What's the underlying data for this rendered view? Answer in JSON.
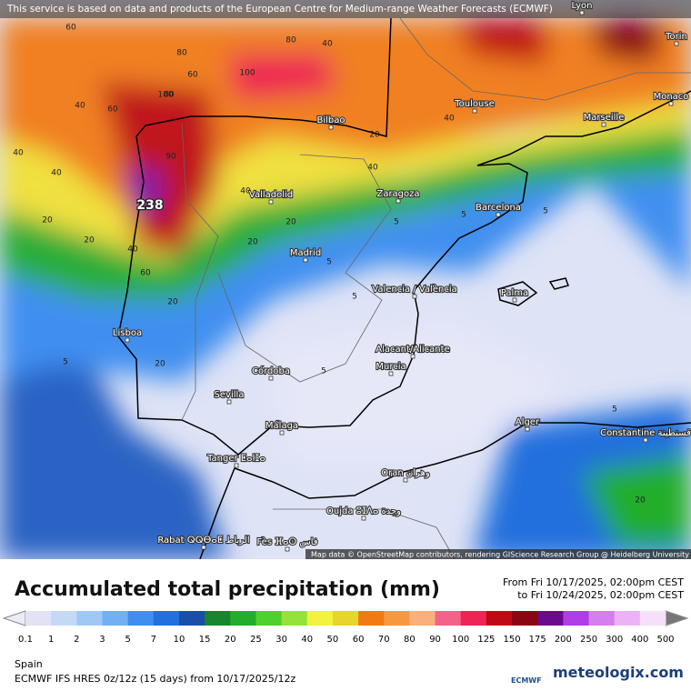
{
  "banner": "This service is based on data and products of the European Centre for Medium-range Weather Forecasts (ECMWF)",
  "attribution": "Map data © OpenStreetMap contributors, rendering GIScience Research Group @ Heidelberg University",
  "max_label": "238",
  "cities": [
    "Lyon",
    "Torin",
    "Monaco",
    "Toulouse",
    "Marseille",
    "Bilbao",
    "Valladolid",
    "Zaragoza",
    "Barcelona",
    "Madrid",
    "Valencia / València",
    "Palma",
    "Lisboa",
    "Córdoba",
    "Alacant/Alicante",
    "Murcia",
    "Sevilla",
    "Málaga",
    "Alger",
    "Constantine قسنطينة",
    "Tanger ⵟⴰⵏⵊⴰ",
    "Oran وهران",
    "Oujda ⵓⵊⴷⴰ وجدة",
    "Rabat ⵕⵕⴱⴰⵟ الرباط",
    "Fès ⴼⴰⵙ فاس"
  ],
  "contour_labels": [
    "60",
    "80",
    "100",
    "80",
    "60",
    "40",
    "60",
    "80",
    "40",
    "40",
    "100",
    "90",
    "40",
    "20",
    "40",
    "20",
    "40",
    "60",
    "40",
    "20",
    "20",
    "40",
    "20",
    "5",
    "5",
    "5",
    "5",
    "5",
    "5",
    "20",
    "5",
    "20",
    "5",
    "20"
  ],
  "legend": {
    "title": "Accumulated total precipitation (mm)",
    "from": "From Fri 10/17/2025, 02:00pm CEST",
    "to": "to Fri 10/24/2025, 02:00pm CEST",
    "ticks": [
      "0.1",
      "1",
      "2",
      "3",
      "5",
      "7",
      "10",
      "15",
      "20",
      "25",
      "30",
      "40",
      "50",
      "60",
      "70",
      "80",
      "90",
      "100",
      "125",
      "150",
      "175",
      "200",
      "250",
      "300",
      "400",
      "500"
    ],
    "colors": [
      "#e2e2f4",
      "#c4d9f5",
      "#9fc8f7",
      "#72b0f3",
      "#3f8ff0",
      "#2170dd",
      "#1a4ea8",
      "#17862c",
      "#22ad2b",
      "#4fd02e",
      "#94e23a",
      "#f2f241",
      "#e6d52a",
      "#f07a13",
      "#f69742",
      "#f9b07a",
      "#f26289",
      "#ee2453",
      "#bf0a16",
      "#8a0612",
      "#6a0a8c",
      "#b23ce6",
      "#d57ef0",
      "#ecb2f5",
      "#f6dff8"
    ]
  },
  "footer": {
    "region": "Spain",
    "model": "ECMWF IFS HRES 0z/12z (15 days) from 10/17/2025/12z",
    "ecmwf": "ECMWF",
    "brand": "meteologix.com"
  }
}
